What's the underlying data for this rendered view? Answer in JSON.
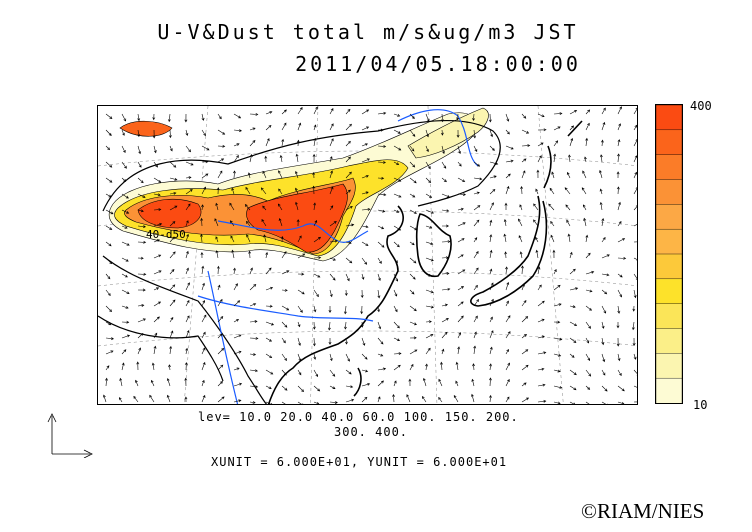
{
  "header": {
    "title_line1": "U-V&Dust total m/s&ug/m3 JST",
    "title_line2": "2011/04/05.18:00:00"
  },
  "map": {
    "contour_label": "40-d50",
    "dust_plume_color": "#ff4400",
    "coastline_color": "#000000",
    "river_color": "#1a5cff"
  },
  "colorbar": {
    "max_label": "400",
    "min_label": "10",
    "colors": [
      "#fdfbd4",
      "#fbf5b0",
      "#fbef88",
      "#fbe558",
      "#fde22a",
      "#fcc93a",
      "#fdb546",
      "#fca845",
      "#fb9236",
      "#fb7c28",
      "#fb641b",
      "#fb4b12"
    ]
  },
  "legend": {
    "levels_line1": "lev= 10.0 20.0 40.0 60.0 100. 150. 200.",
    "levels_line2": "300. 400.",
    "units_text": "XUNIT = 6.000E+01, YUNIT = 6.000E+01"
  },
  "footer": {
    "copyright": "©RIAM/NIES"
  }
}
